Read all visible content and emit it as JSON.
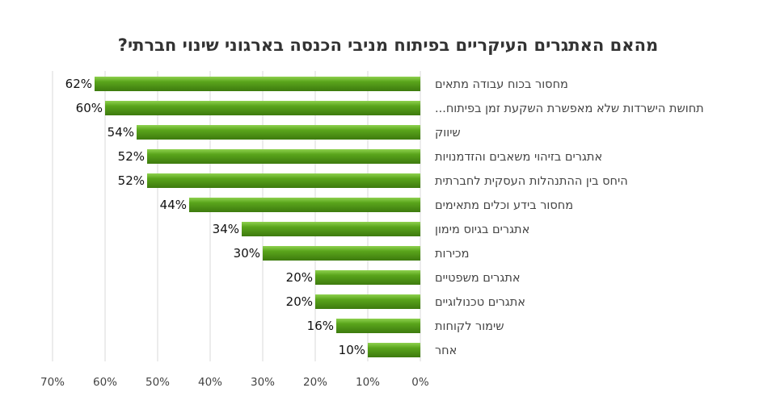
{
  "chart_data": {
    "type": "bar",
    "orientation": "horizontal",
    "title": "מהאם האתגרים העיקריים בפיתוח מניבי הכנסה בארגוני שינוי חברתי?",
    "categories": [
      "מחסור בכוח עבודה מתאים",
      "תחושת הישרדות שלא מאפשרת השקעת זמן בפיתוח...",
      "שיווק",
      "אתגרים בזיהוי משאבים והזדמנויות",
      "היחס בין ההתנהלות העסקית לחברתית",
      "מחסור בידע וכלים מתאימים",
      "אתגרים בגיוס מימון",
      "מכירות",
      "אתגרים משפטיים",
      "אתגרים טכנולוגיים",
      "שימור לקוחות",
      "אחר"
    ],
    "values": [
      62,
      60,
      54,
      52,
      52,
      44,
      34,
      30,
      20,
      20,
      16,
      10
    ],
    "value_labels": [
      "62%",
      "60%",
      "54%",
      "52%",
      "52%",
      "44%",
      "34%",
      "30%",
      "20%",
      "20%",
      "16%",
      "10%"
    ],
    "xlim": [
      0,
      70
    ],
    "x_ticks": [
      0,
      10,
      20,
      30,
      40,
      50,
      60,
      70
    ],
    "x_tick_labels": [
      "0%",
      "10%",
      "20%",
      "30%",
      "40%",
      "50%",
      "60%",
      "70%"
    ],
    "x_axis_reversed": true,
    "grid": true,
    "legend": "none",
    "colors": {
      "bar": "#5aa51c",
      "bar_highlight": "#8fd14f",
      "bar_shadow": "#3d7a0e",
      "grid": "#d9d9d9",
      "title": "#333333"
    }
  }
}
